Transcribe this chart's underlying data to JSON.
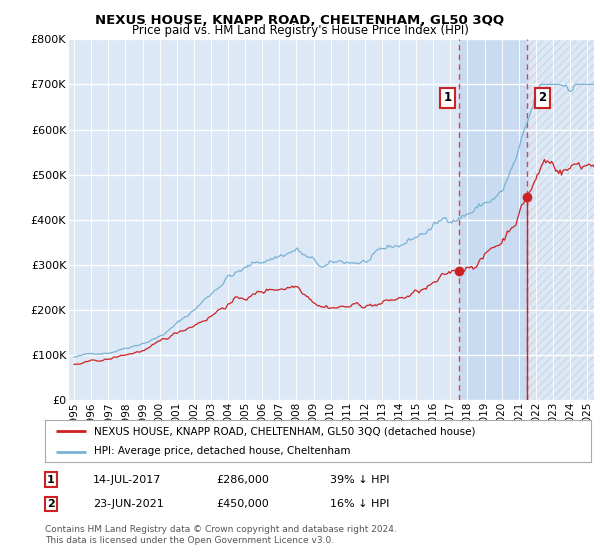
{
  "title": "NEXUS HOUSE, KNAPP ROAD, CHELTENHAM, GL50 3QQ",
  "subtitle": "Price paid vs. HM Land Registry's House Price Index (HPI)",
  "legend_line1": "NEXUS HOUSE, KNAPP ROAD, CHELTENHAM, GL50 3QQ (detached house)",
  "legend_line2": "HPI: Average price, detached house, Cheltenham",
  "sale1_date": "14-JUL-2017",
  "sale1_price": 286000,
  "sale1_pct": "39% ↓ HPI",
  "sale2_date": "23-JUN-2021",
  "sale2_price": 450000,
  "sale2_pct": "16% ↓ HPI",
  "footnote": "Contains HM Land Registry data © Crown copyright and database right 2024.\nThis data is licensed under the Open Government Licence v3.0.",
  "hpi_color": "#7ab3d4",
  "price_color": "#cc2222",
  "vline_color": "#dd4444",
  "background_color": "#dce8f5",
  "highlight_color": "#c8dbf0",
  "hatch_color": "#c0c8d8",
  "ylim": [
    0,
    800000
  ],
  "yticks": [
    0,
    100000,
    200000,
    300000,
    400000,
    500000,
    600000,
    700000,
    800000
  ],
  "xlim_start": 1994.7,
  "xlim_end": 2025.4
}
